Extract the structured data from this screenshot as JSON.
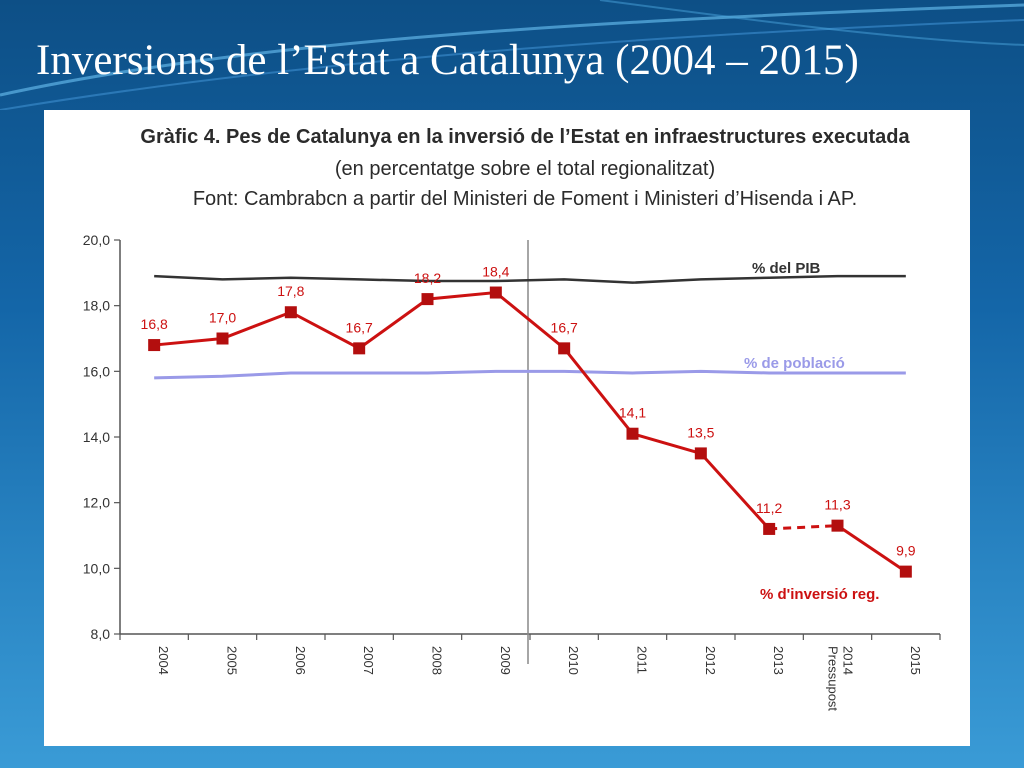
{
  "slide": {
    "title": "Inversions de l’Estat a Catalunya (2004 – 2015)"
  },
  "chart_data": {
    "type": "line",
    "title": "Gràfic 4. Pes de Catalunya en la inversió de l’Estat en infraestructures executada",
    "subtitle": "(en percentatge sobre el total regionalitzat)",
    "source": "Font: Cambrabcn a partir del Ministeri de Foment i Ministeri d’Hisenda i AP.",
    "categories": [
      "2004",
      "2005",
      "2006",
      "2007",
      "2008",
      "2009",
      "2010",
      "2011",
      "2012",
      "2013",
      "Pressupost 2014",
      "2015"
    ],
    "ylim": [
      8,
      20
    ],
    "yticks": [
      "8,0",
      "10,0",
      "12,0",
      "14,0",
      "16,0",
      "18,0",
      "20,0"
    ],
    "series": [
      {
        "name": "% del PIB",
        "color": "#333333",
        "values": [
          18.9,
          18.8,
          18.85,
          18.8,
          18.75,
          18.75,
          18.8,
          18.7,
          18.8,
          18.85,
          18.9,
          18.9
        ]
      },
      {
        "name": "% de població",
        "color": "#9a9ae8",
        "values": [
          15.8,
          15.85,
          15.95,
          15.95,
          15.95,
          16.0,
          16.0,
          15.95,
          16.0,
          15.95,
          15.95,
          15.95
        ]
      },
      {
        "name": "% d'inversió reg.",
        "color": "#cc1111",
        "values": [
          16.8,
          17.0,
          17.8,
          16.7,
          18.2,
          18.4,
          16.7,
          14.1,
          13.5,
          11.2,
          11.3,
          9.9
        ],
        "labels": [
          "16,8",
          "17,0",
          "17,8",
          "16,7",
          "18,2",
          "18,4",
          "16,7",
          "14,1",
          "13,5",
          "11,2",
          "11,3",
          "9,9"
        ],
        "dashed_segment": [
          9,
          10
        ]
      }
    ],
    "grid": false
  }
}
